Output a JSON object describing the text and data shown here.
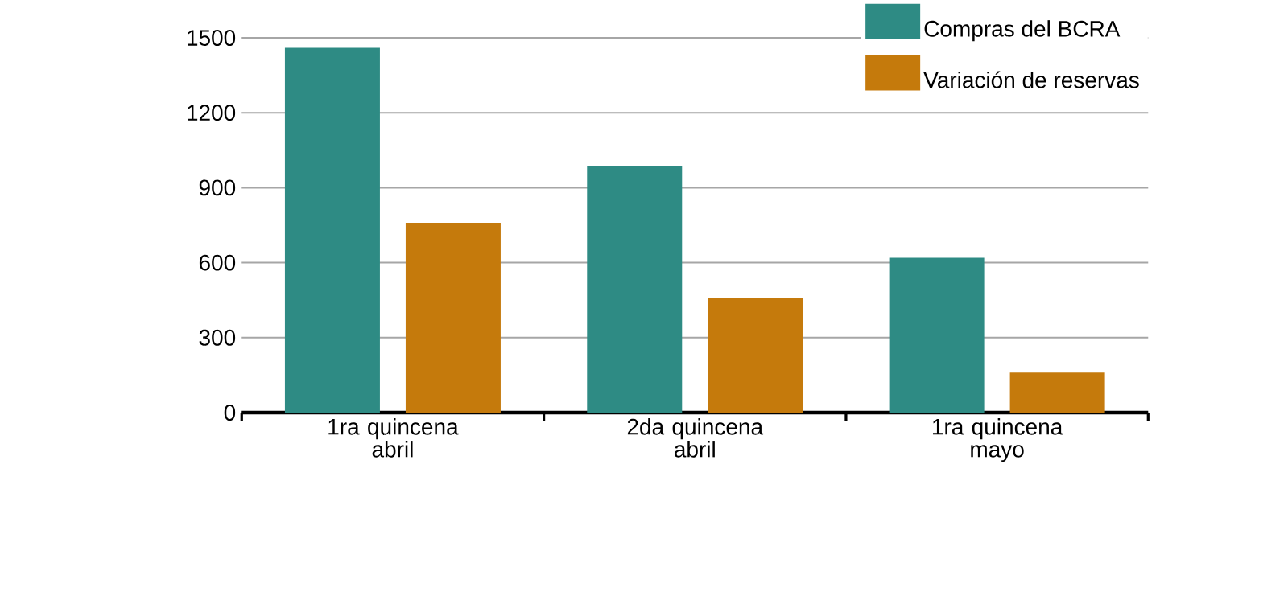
{
  "chart_data": {
    "type": "bar",
    "categories": [
      "1ra quincena abril",
      "2da quincena abril",
      "1ra quincena mayo"
    ],
    "series": [
      {
        "name": "Compras del BCRA",
        "color": "#2e8b84",
        "values": [
          1460,
          985,
          620
        ]
      },
      {
        "name": "Variación de reservas",
        "color": "#c57a0c",
        "values": [
          760,
          460,
          160
        ]
      }
    ],
    "ylim": [
      0,
      1500
    ],
    "yticks": [
      0,
      300,
      600,
      900,
      1200,
      1500
    ],
    "grid": "y",
    "legend": "top right"
  }
}
